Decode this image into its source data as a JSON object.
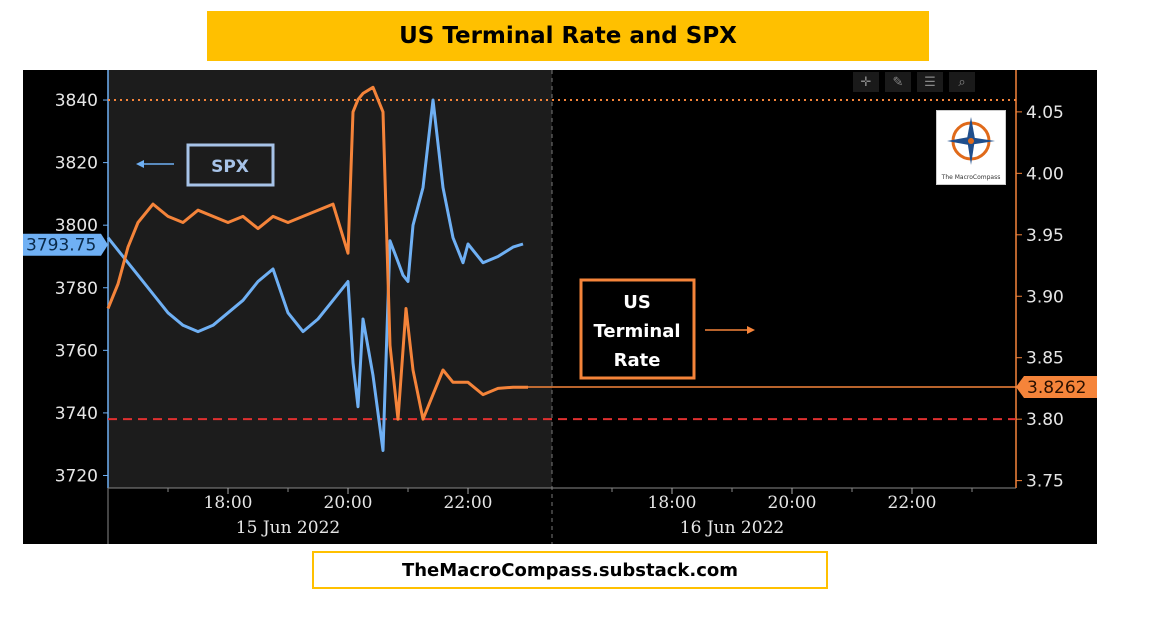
{
  "title": "US Terminal Rate and SPX",
  "footer": "TheMacroCompass.substack.com",
  "toolbar_icons": [
    "crosshair-icon",
    "pen-icon",
    "list-icon",
    "magnifier-icon"
  ],
  "logo": {
    "caption": "The MacroCompass"
  },
  "annotations": {
    "spx_label": "SPX",
    "rate_label_lines": [
      "US",
      "Terminal",
      "Rate"
    ]
  },
  "colors": {
    "spx": "#6fb0f4",
    "rate": "#f5843a",
    "title_bg": "#ffc000",
    "ref_line": "#e03030"
  },
  "chart_data": {
    "type": "line",
    "title": "",
    "x_tick_labels": [
      "18:00",
      "20:00",
      "22:00",
      "18:00",
      "20:00",
      "22:00"
    ],
    "x_date_labels": [
      "15 Jun 2022",
      "16 Jun 2022"
    ],
    "y_left": {
      "ticks": [
        3720,
        3740,
        3760,
        3780,
        3800,
        3820,
        3840
      ],
      "range": [
        3716,
        3848
      ]
    },
    "y_right": {
      "ticks": [
        3.75,
        3.8,
        3.85,
        3.9,
        3.95,
        4.0,
        4.05
      ],
      "range": [
        3.744,
        4.08
      ]
    },
    "current_values": {
      "spx": "3793.75",
      "rate": "3.8262"
    },
    "reference_lines": {
      "spx_high_dotted": 3840,
      "rate_red_dashed": 3.8
    },
    "series": [
      {
        "name": "SPX",
        "axis": "left",
        "x": [
          "15 Jun 16:00",
          "15 Jun 16:15",
          "15 Jun 16:30",
          "15 Jun 16:45",
          "15 Jun 17:00",
          "15 Jun 17:15",
          "15 Jun 17:30",
          "15 Jun 17:45",
          "15 Jun 18:00",
          "15 Jun 18:15",
          "15 Jun 18:30",
          "15 Jun 18:45",
          "15 Jun 19:00",
          "15 Jun 19:15",
          "15 Jun 19:30",
          "15 Jun 19:45",
          "15 Jun 20:00",
          "15 Jun 20:05",
          "15 Jun 20:10",
          "15 Jun 20:15",
          "15 Jun 20:25",
          "15 Jun 20:35",
          "15 Jun 20:42",
          "15 Jun 20:48",
          "15 Jun 20:55",
          "15 Jun 21:00",
          "15 Jun 21:05",
          "15 Jun 21:15",
          "15 Jun 21:25",
          "15 Jun 21:35",
          "15 Jun 21:45",
          "15 Jun 21:55",
          "15 Jun 22:00",
          "15 Jun 22:15",
          "15 Jun 22:30",
          "15 Jun 22:45",
          "15 Jun 22:55"
        ],
        "values": [
          3796,
          3790,
          3784,
          3778,
          3772,
          3768,
          3766,
          3768,
          3772,
          3776,
          3782,
          3786,
          3772,
          3766,
          3770,
          3776,
          3782,
          3756,
          3742,
          3770,
          3752,
          3728,
          3795,
          3790,
          3784,
          3782,
          3800,
          3812,
          3840,
          3812,
          3796,
          3788,
          3794,
          3788,
          3790,
          3793,
          3794
        ]
      },
      {
        "name": "US Terminal Rate",
        "axis": "right",
        "x": [
          "15 Jun 16:00",
          "15 Jun 16:10",
          "15 Jun 16:20",
          "15 Jun 16:30",
          "15 Jun 16:45",
          "15 Jun 17:00",
          "15 Jun 17:15",
          "15 Jun 17:30",
          "15 Jun 18:00",
          "15 Jun 18:15",
          "15 Jun 18:30",
          "15 Jun 18:45",
          "15 Jun 19:00",
          "15 Jun 19:15",
          "15 Jun 19:30",
          "15 Jun 19:45",
          "15 Jun 20:00",
          "15 Jun 20:05",
          "15 Jun 20:10",
          "15 Jun 20:15",
          "15 Jun 20:25",
          "15 Jun 20:35",
          "15 Jun 20:42",
          "15 Jun 20:50",
          "15 Jun 20:58",
          "15 Jun 21:05",
          "15 Jun 21:15",
          "15 Jun 21:25",
          "15 Jun 21:35",
          "15 Jun 21:45",
          "15 Jun 22:00",
          "15 Jun 22:15",
          "15 Jun 22:30",
          "15 Jun 22:45",
          "15 Jun 23:00"
        ],
        "values": [
          3.89,
          3.91,
          3.94,
          3.96,
          3.975,
          3.965,
          3.96,
          3.97,
          3.96,
          3.965,
          3.955,
          3.965,
          3.96,
          3.965,
          3.97,
          3.975,
          3.935,
          4.05,
          4.06,
          4.065,
          4.07,
          4.05,
          3.86,
          3.8,
          3.89,
          3.84,
          3.8,
          3.82,
          3.84,
          3.83,
          3.83,
          3.82,
          3.825,
          3.826,
          3.826
        ]
      }
    ]
  }
}
